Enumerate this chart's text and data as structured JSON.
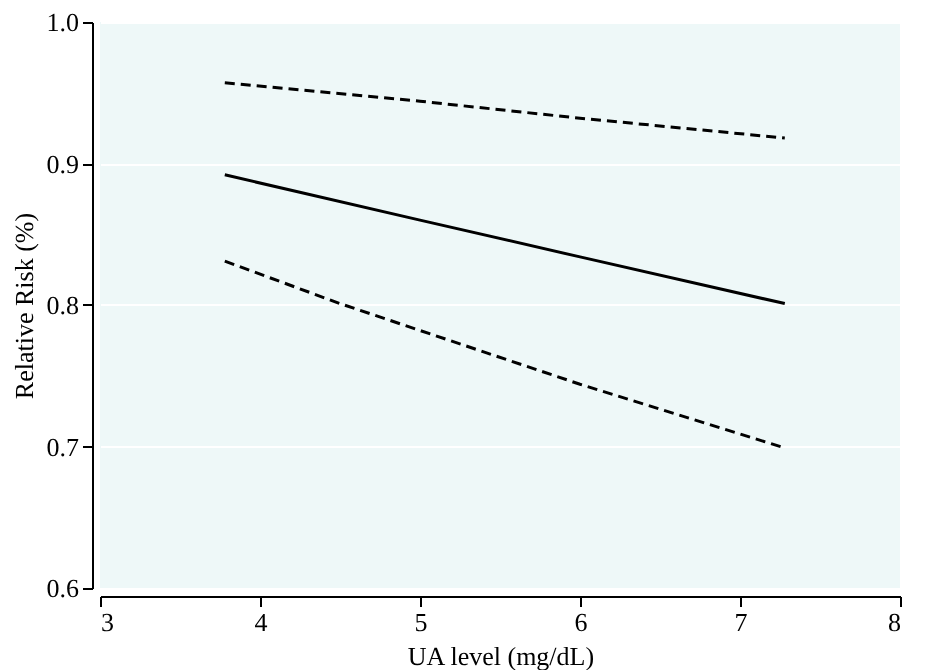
{
  "chart_data": {
    "type": "line",
    "xlabel": "UA level (mg/dL)",
    "ylabel": "Relative Risk (%)",
    "xlim": [
      3,
      8
    ],
    "xticks": [
      3,
      4,
      5,
      6,
      7,
      8
    ],
    "ylim": [
      0.6,
      1.0
    ],
    "yticks": [
      0.6,
      0.7,
      0.8,
      0.9,
      {
        "value": 1,
        "label": "1.0"
      }
    ],
    "grid": "y",
    "marker": "none",
    "series": [
      {
        "color": "#000000",
        "line_style": "dashed",
        "x": [
          3.78,
          5,
          6,
          7.28
        ],
        "values": [
          0.957,
          0.944,
          0.932,
          0.918
        ]
      },
      {
        "color": "#000000",
        "line_style": "solid",
        "x": [
          3.78,
          5,
          6,
          7.28
        ],
        "values": [
          0.892,
          0.86,
          0.834,
          0.801
        ]
      },
      {
        "color": "#000000",
        "line_style": "dashed",
        "x": [
          3.78,
          4.5,
          5,
          6,
          7.28
        ],
        "values": [
          0.831,
          0.801,
          0.782,
          0.744,
          0.699
        ]
      }
    ]
  }
}
